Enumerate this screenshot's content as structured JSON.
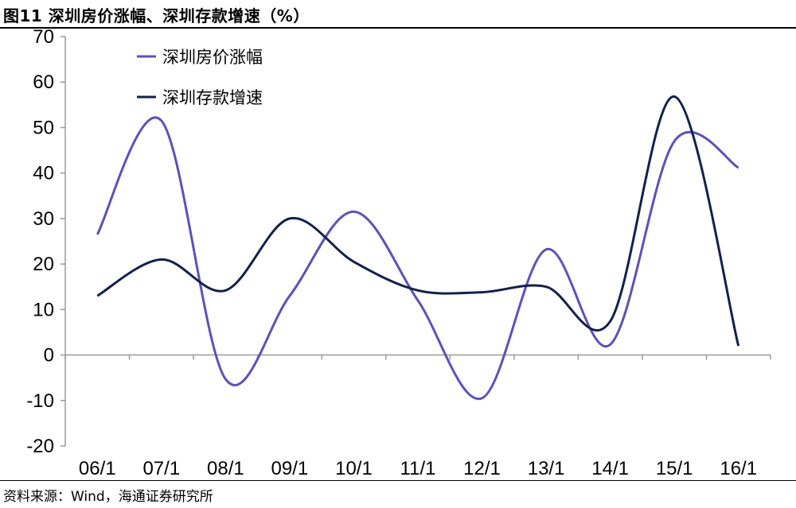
{
  "title": "图11 深圳房价涨幅、深圳存款增速（%）",
  "source": "资料来源：Wind，海通证券研究所",
  "chart_data": {
    "type": "line",
    "title": "图11 深圳房价涨幅、深圳存款增速（%）",
    "xlabel": "",
    "ylabel": "",
    "categories": [
      "06/1",
      "07/1",
      "08/1",
      "09/1",
      "10/1",
      "11/1",
      "12/1",
      "13/1",
      "14/1",
      "15/1",
      "16/1"
    ],
    "ylim": [
      -20,
      70
    ],
    "yticks": [
      -20,
      -10,
      0,
      10,
      20,
      30,
      40,
      50,
      60,
      70
    ],
    "grid": false,
    "legend_position": "top-left",
    "series": [
      {
        "name": "深圳房价涨幅",
        "color": "#5b52b8",
        "values": [
          26.5,
          51.5,
          -5.3,
          13.0,
          31.5,
          12.0,
          -9.5,
          23.2,
          2.3,
          47.0,
          41.2
        ]
      },
      {
        "name": "深圳存款增速",
        "color": "#14204a",
        "values": [
          13.0,
          21.0,
          14.2,
          30.0,
          20.5,
          14.2,
          13.8,
          15.0,
          7.4,
          56.8,
          2.0
        ]
      }
    ]
  }
}
